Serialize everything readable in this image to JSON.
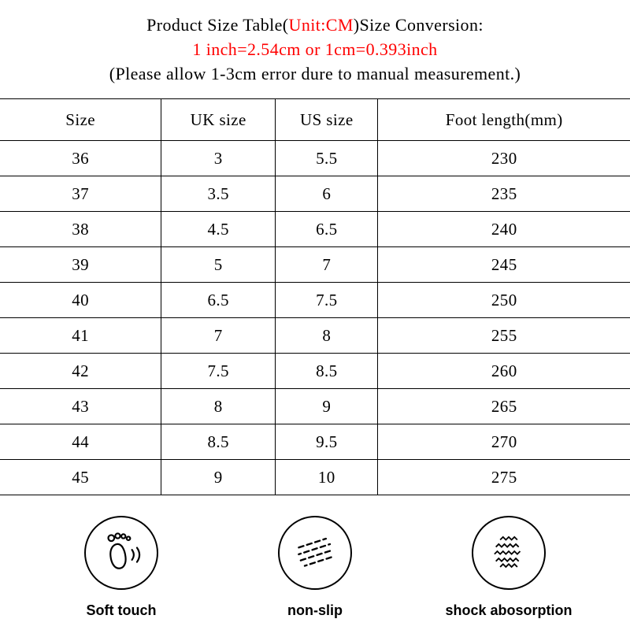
{
  "header": {
    "title_prefix": "Product Size Table(",
    "title_unit": "Unit:CM",
    "title_suffix": ")Size Conversion:",
    "conversion": "1 inch=2.54cm or 1cm=0.393inch",
    "note": "(Please allow 1-3cm error dure to manual measurement.)",
    "accent_color": "#ff0000"
  },
  "table": {
    "columns": [
      "Size",
      "UK size",
      "US size",
      "Foot length(mm)"
    ],
    "rows": [
      [
        "36",
        "3",
        "5.5",
        "230"
      ],
      [
        "37",
        "3.5",
        "6",
        "235"
      ],
      [
        "38",
        "4.5",
        "6.5",
        "240"
      ],
      [
        "39",
        "5",
        "7",
        "245"
      ],
      [
        "40",
        "6.5",
        "7.5",
        "250"
      ],
      [
        "41",
        "7",
        "8",
        "255"
      ],
      [
        "42",
        "7.5",
        "8.5",
        "260"
      ],
      [
        "43",
        "8",
        "9",
        "265"
      ],
      [
        "44",
        "8.5",
        "9.5",
        "270"
      ],
      [
        "45",
        "9",
        "10",
        "275"
      ]
    ]
  },
  "features": [
    {
      "icon": "foot-icon",
      "label": "Soft touch"
    },
    {
      "icon": "non-slip-icon",
      "label": "non-slip"
    },
    {
      "icon": "shock-absorption-icon",
      "label": "shock abosorption"
    }
  ]
}
